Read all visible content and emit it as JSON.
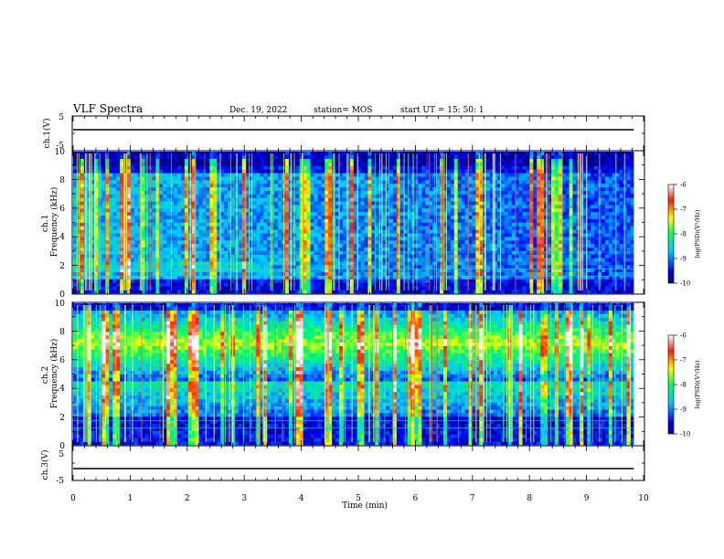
{
  "header": {
    "title": "VLF Spectra",
    "date": "Dec. 19, 2022",
    "station": "station= MOS",
    "start": "start  UT  =   15: 50: 1"
  },
  "chart_data": [
    {
      "type": "line",
      "panel": "ch1_waveform",
      "ylabel": "ch.1(V)",
      "ylim": [
        -5,
        5
      ],
      "yticks": [
        "5",
        "-5"
      ],
      "xlim": [
        0,
        10
      ],
      "series": [
        {
          "x": [
            0,
            9.83
          ],
          "y": [
            0,
            0
          ]
        }
      ]
    },
    {
      "type": "heatmap",
      "panel": "ch1_spectrogram",
      "ylabel": "ch.1\nFrequency  (kHz)",
      "ylim": [
        0,
        10
      ],
      "yticks": [
        "0",
        "2",
        "4",
        "6",
        "8",
        "10"
      ],
      "xlim": [
        0,
        10
      ],
      "data_end_min": 9.83,
      "colorbar": {
        "label": "log(PSD)(V²/Hz)",
        "range": [
          -10,
          -6
        ],
        "ticks": [
          "-6",
          "-7",
          "-8",
          "-9",
          "-10"
        ]
      }
    },
    {
      "type": "heatmap",
      "panel": "ch2_spectrogram",
      "ylabel": "ch.2\nFrequency  (kHz)",
      "ylim": [
        0,
        10
      ],
      "yticks": [
        "0",
        "2",
        "4",
        "6",
        "8",
        "10"
      ],
      "xlim": [
        0,
        10
      ],
      "data_end_min": 9.83,
      "colorbar": {
        "label": "log(PSD)(V²/Hz)",
        "range": [
          -10,
          -6
        ],
        "ticks": [
          "-6",
          "-7",
          "-8",
          "-9",
          "-10"
        ]
      }
    },
    {
      "type": "line",
      "panel": "ch3_waveform",
      "ylabel": "ch.3(V)",
      "ylim": [
        -5,
        5
      ],
      "yticks": [
        "5",
        "-5"
      ],
      "xlim": [
        0,
        10
      ],
      "xlabel": "Time  (min)",
      "xticks": [
        "0",
        "1",
        "2",
        "3",
        "4",
        "5",
        "6",
        "7",
        "8",
        "9",
        "10"
      ],
      "series": [
        {
          "x": [
            0,
            9.83
          ],
          "y": [
            0,
            0
          ]
        }
      ]
    }
  ]
}
